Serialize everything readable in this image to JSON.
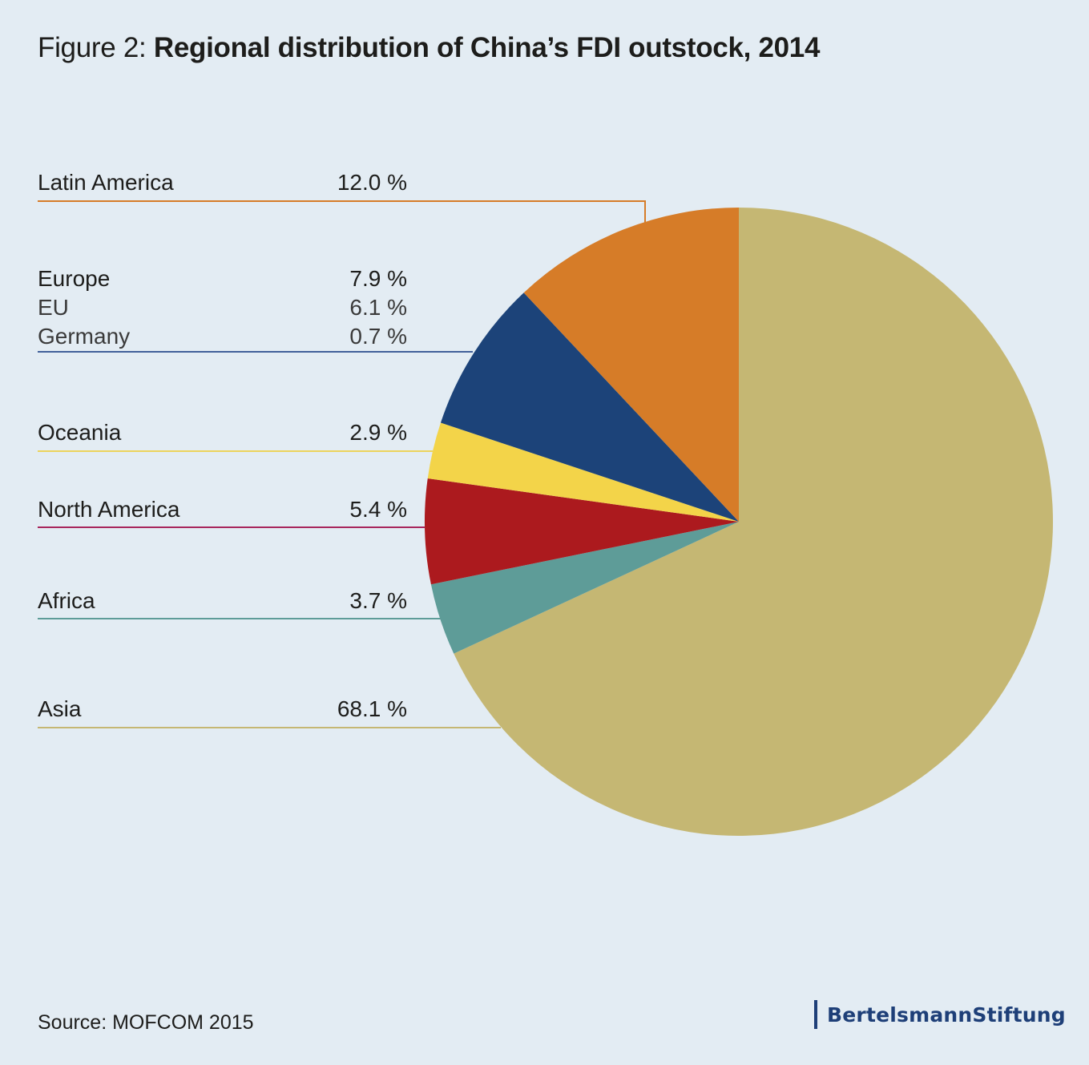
{
  "title": {
    "prefix": "Figure 2: ",
    "main": "Regional distribution of China’s FDI outstock, 2014"
  },
  "chart_data": {
    "type": "pie",
    "title": "Figure 2: Regional distribution of China’s FDI outstock, 2014",
    "slices": [
      {
        "label": "Asia",
        "value": 68.1,
        "value_label": "68.1 %",
        "color": "#c5b773"
      },
      {
        "label": "Latin America",
        "value": 12.0,
        "value_label": "12.0 %",
        "color": "#d67c28"
      },
      {
        "label": "Europe",
        "value": 7.9,
        "value_label": "7.9 %",
        "color": "#1c4379",
        "sub": [
          {
            "label": "EU",
            "value": 6.1,
            "value_label": "6.1 %"
          },
          {
            "label": "Germany",
            "value": 0.7,
            "value_label": "0.7 %"
          }
        ]
      },
      {
        "label": "Oceania",
        "value": 2.9,
        "value_label": "2.9 %",
        "color": "#f3d449"
      },
      {
        "label": "North America",
        "value": 5.4,
        "value_label": "5.4 %",
        "color": "#ac1a1e"
      },
      {
        "label": "Africa",
        "value": 3.7,
        "value_label": "3.7 %",
        "color": "#5e9c98"
      }
    ],
    "slice_order": "clockwise from 12 o'clock: Asia, Africa, North America, Oceania, Europe, Latin America",
    "legend_position": "left",
    "leader_line_colors": {
      "Latin America": "#d67c28",
      "Europe": "#41609a",
      "Oceania": "#ecd35c",
      "North America": "#a8265c",
      "Africa": "#5e9c98",
      "Asia": "#c5b773"
    }
  },
  "source": "Source: MOFCOM 2015",
  "logo": "BertelsmannStiftung"
}
